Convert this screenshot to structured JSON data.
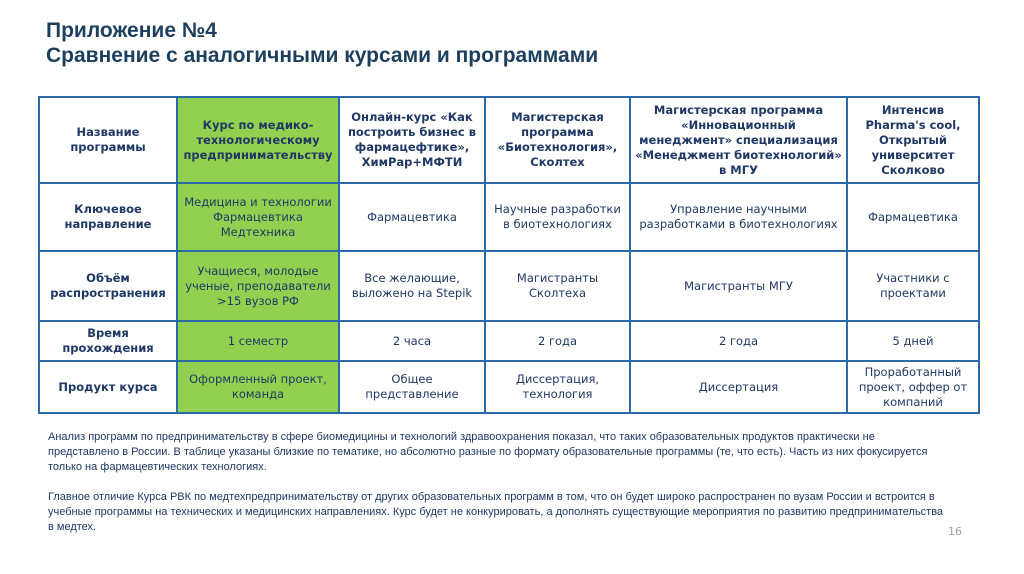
{
  "title": {
    "line1": "Приложение №4",
    "line2": "Сравнение с аналогичными курсами и программами"
  },
  "table": {
    "rows": [
      {
        "label": "Название программы",
        "cells": [
          "Курс по медико-технологическому предпринимательству",
          "Онлайн-курс «Как построить бизнес в фармацефтике», ХимРар+МФТИ",
          "Магистерская программа «Биотехнология», Сколтех",
          "Магистерская программа «Инновационный менеджмент» специализация «Менеджмент биотехнологий» в МГУ",
          "Интенсив Pharma's cool, Открытый университет Сколково"
        ]
      },
      {
        "label": "Ключевое направление",
        "cells": [
          "Медицина и технологии Фармацевтика Медтехника",
          "Фармацевтика",
          "Научные разработки в биотехнологиях",
          "Управление научными разработками в биотехнологиях",
          "Фармацевтика"
        ]
      },
      {
        "label": "Объём распространения",
        "cells": [
          "Учащиеся, молодые ученые, преподаватели >15 вузов РФ",
          "Все желающие, выложено на Stepik",
          "Магистранты Сколтеха",
          "Магистранты МГУ",
          "Участники с проектами"
        ]
      },
      {
        "label": "Время прохождения",
        "cells": [
          "1 семестр",
          "2 часа",
          "2 года",
          "2 года",
          "5 дней"
        ]
      },
      {
        "label": "Продукт курса",
        "cells": [
          "Оформленный проект, команда",
          "Общее представление",
          "Диссертация, технология",
          "Диссертация",
          "Проработанный проект, оффер от компаний"
        ]
      }
    ]
  },
  "notes": [
    "Анализ программ по предпринимательству в сфере биомедицины и технологий здравоохранения показал, что таких образовательных продуктов практически не представлено в России.  В таблице указаны близкие по тематике, но абсолютно разные по формату образовательные программы (те, что есть).  Часть из них фокусируется только на фармацевтических технологиях.",
    "Главное отличие Курса РВК по медтехпредпринимательству от других образовательных программ в том, что он будет широко распространен по вузам России и встроится в учебные программы на технических и медицинских направлениях. Курс будет не конкурировать, а дополнять существующие мероприятия по развитию предпринимательства в медтех."
  ],
  "page_number": "16",
  "colors": {
    "highlight": "#92d050",
    "border": "#2f6aa8",
    "text": "#1f3864"
  }
}
